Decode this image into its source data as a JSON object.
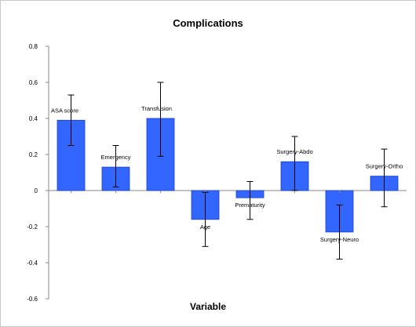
{
  "chart_data": {
    "type": "bar",
    "title": "Complications",
    "xlabel": "Variable",
    "ylabel": "",
    "ylim": [
      -0.6,
      0.8
    ],
    "yticks": [
      "0.8",
      "0.6",
      "0.4",
      "0.2",
      "0",
      "-0.2",
      "-0.4",
      "-0.6"
    ],
    "ytick_values": [
      0.8,
      0.6,
      0.4,
      0.2,
      0,
      -0.2,
      -0.4,
      -0.6
    ],
    "categories": [
      "ASA score",
      "Emergency",
      "Transfusion",
      "Age",
      "Prematurity",
      "Surgery-Abdo",
      "Surgery-Neuro",
      "Surgery-Ortho"
    ],
    "values": [
      0.39,
      0.13,
      0.4,
      -0.16,
      -0.04,
      0.16,
      -0.23,
      0.08
    ],
    "error_low": [
      0.25,
      0.02,
      0.19,
      -0.31,
      -0.16,
      0.0,
      -0.38,
      -0.09
    ],
    "error_high": [
      0.53,
      0.25,
      0.6,
      -0.01,
      0.05,
      0.3,
      -0.08,
      0.23
    ],
    "bar_color": "#3366ff",
    "grid": false
  }
}
